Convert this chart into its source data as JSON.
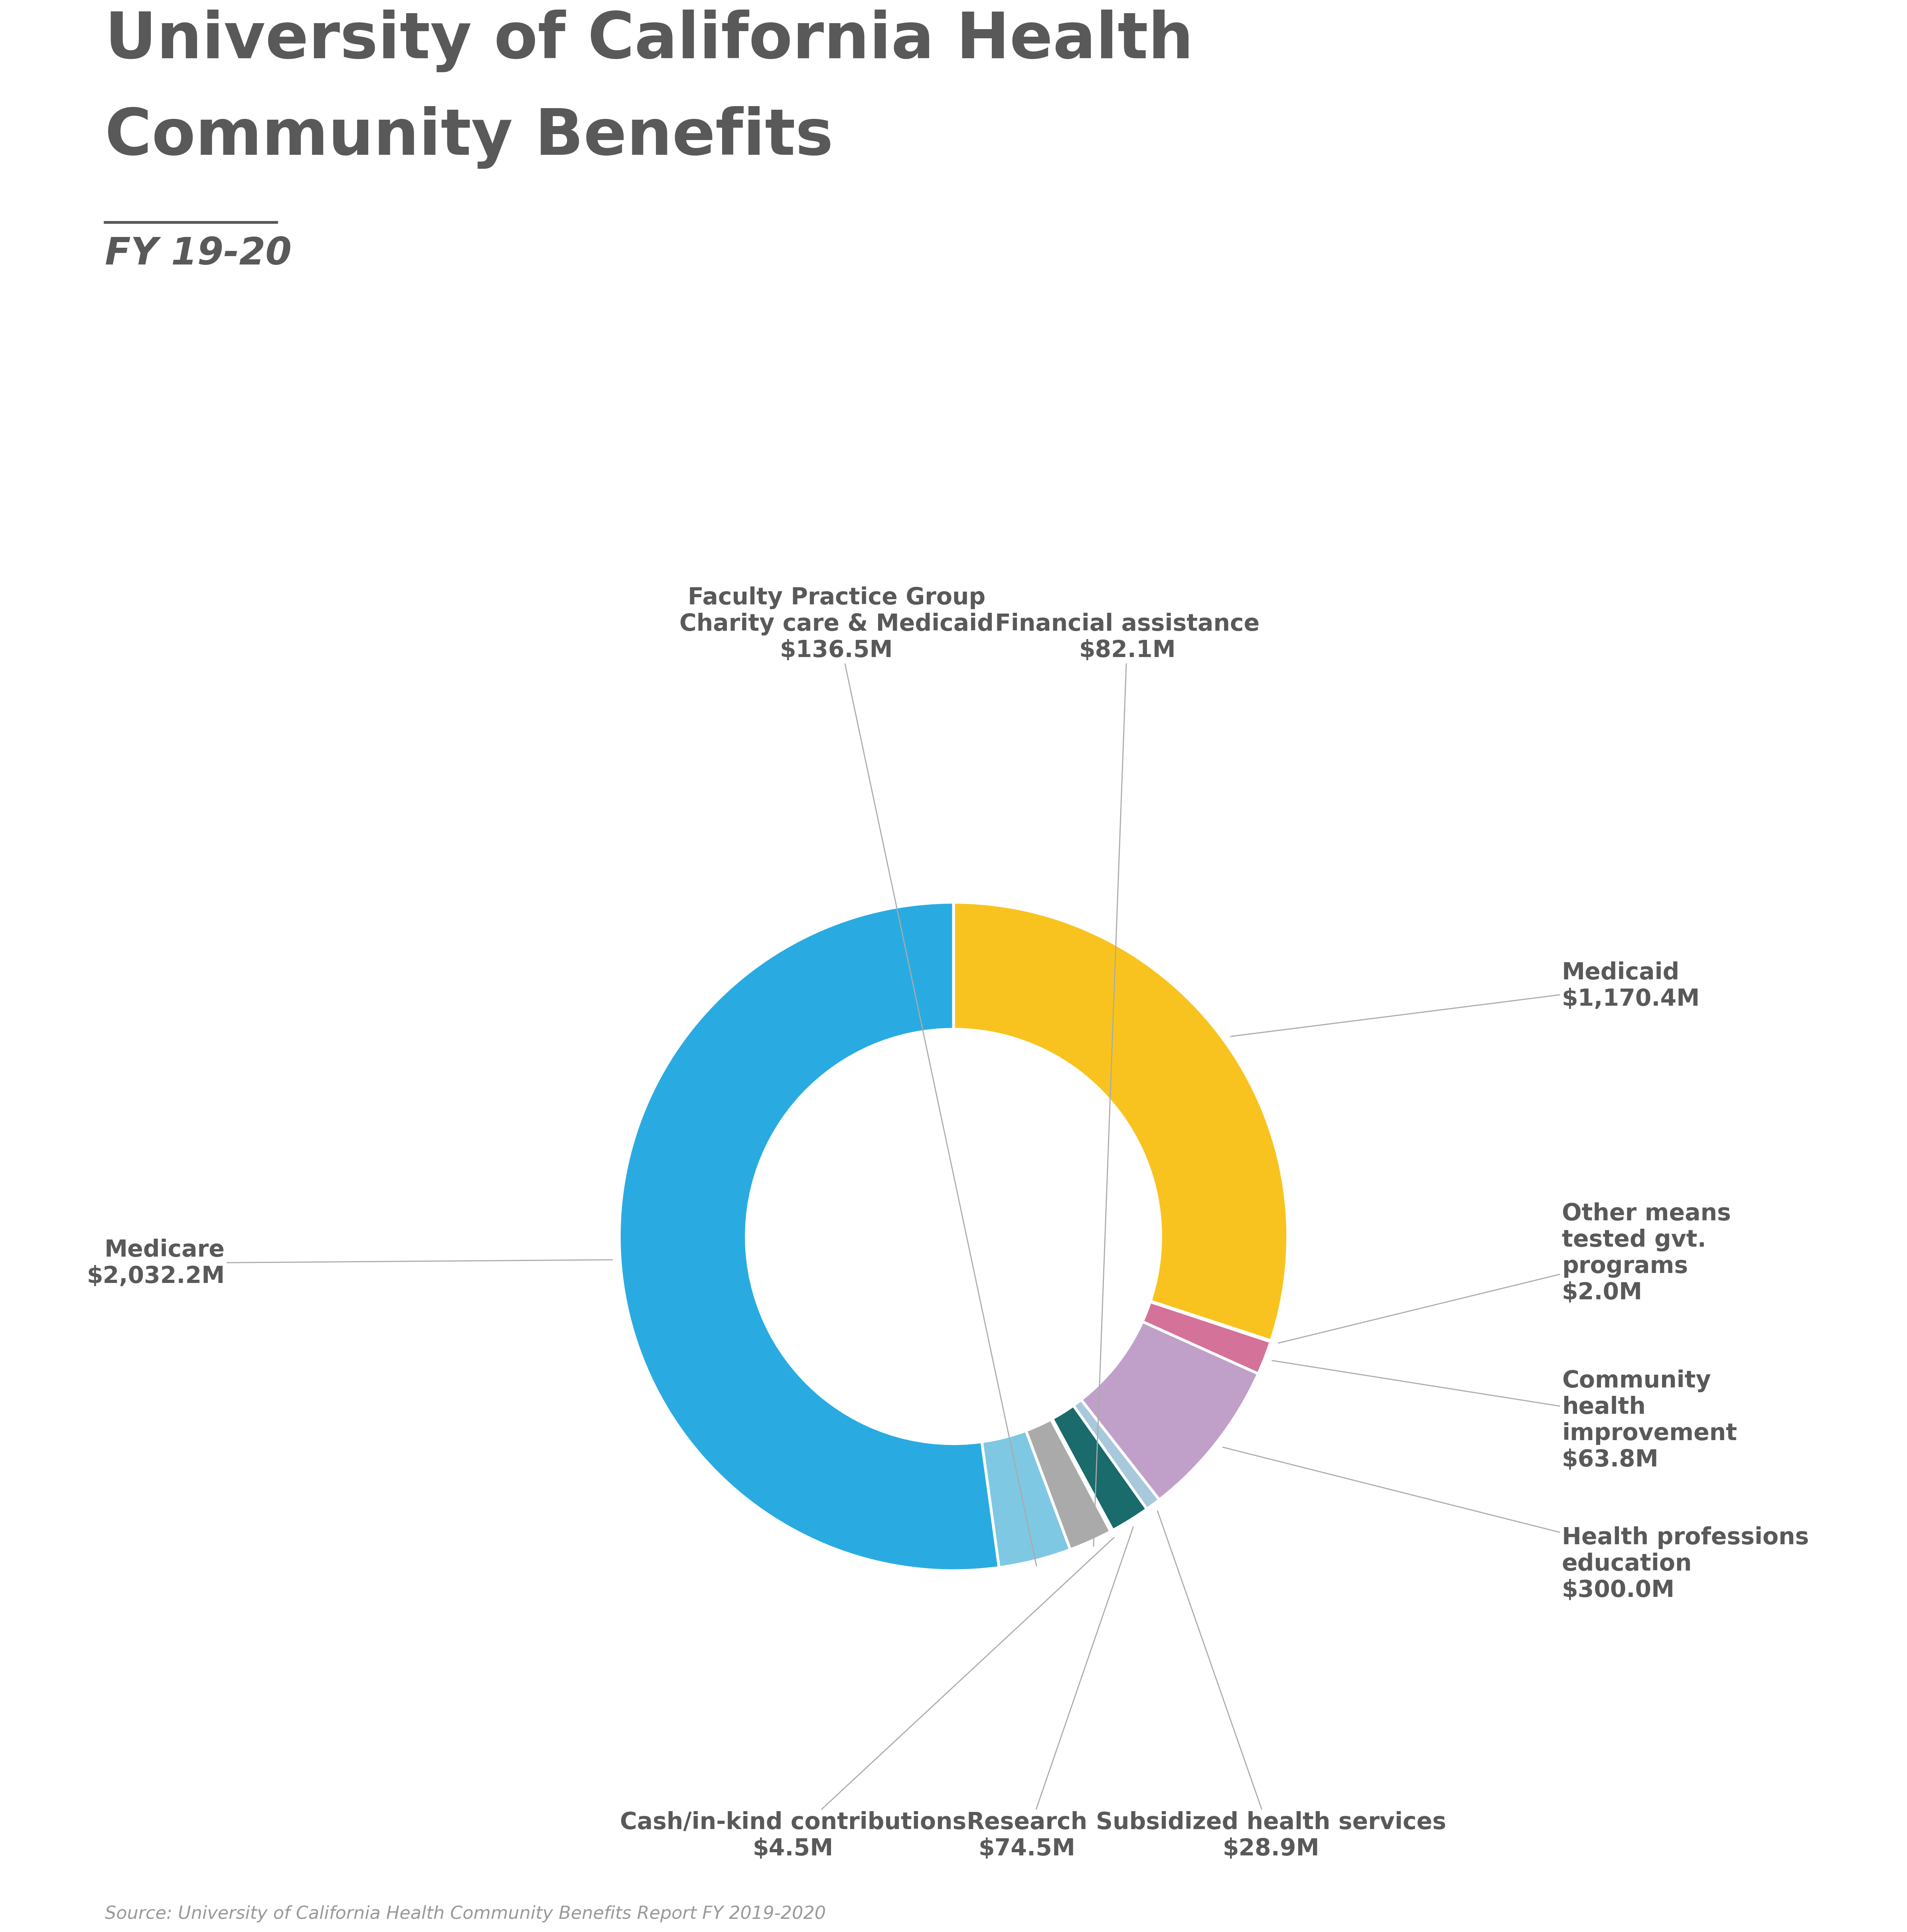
{
  "title_line1": "University of California Health",
  "title_line2": "Community Benefits",
  "subtitle": "FY 19-20",
  "source": "Source: University of California Health Community Benefits Report FY 2019-2020",
  "values": [
    1170.4,
    2.0,
    63.8,
    300.0,
    28.9,
    74.5,
    4.5,
    82.1,
    136.5,
    2032.2
  ],
  "colors": [
    "#F9C31F",
    "#F9C31F",
    "#D4729A",
    "#C0A0C8",
    "#A8C8DC",
    "#1A6B6B",
    "#1A1A6B",
    "#AAAAAA",
    "#7EC8E3",
    "#29ABE2"
  ],
  "labels": [
    "Medicaid\n$1,170.4M",
    "Other means\ntested gvt.\nprograms\n$2.0M",
    "Community\nhealth\nimprovement\n$63.8M",
    "Health professions\neducation\n$300.0M",
    "Subsidized health services\n$28.9M",
    "Research\n$74.5M",
    "Cash/in-kind contributions\n$4.5M",
    "Financial assistance\n$82.1M",
    "Faculty Practice Group\nCharity care & Medicaid\n$136.5M",
    "Medicare\n$2,032.2M"
  ],
  "text_color": "#595959",
  "title_color": "#595959",
  "background_color": "#FFFFFF",
  "title_fontsize": 115,
  "subtitle_fontsize": 68,
  "label_fontsize": 42,
  "source_fontsize": 32
}
